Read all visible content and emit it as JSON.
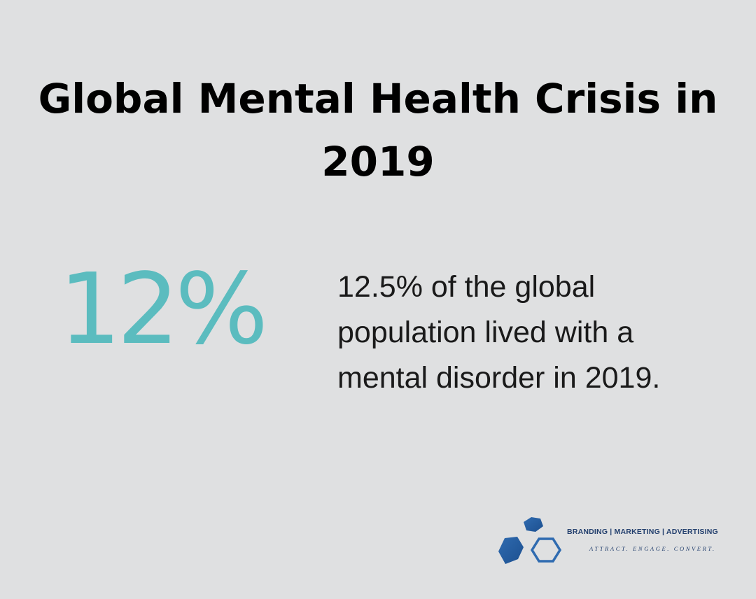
{
  "title": "Global Mental Health Crisis in 2019",
  "stat": {
    "value": "12%",
    "description": "12.5% of the global population lived with a mental disorder in 2019."
  },
  "logo": {
    "tagline": "BRANDING | MARKETING | ADVERTISING",
    "slogan": "ATTRACT. ENGAGE. CONVERT."
  },
  "colors": {
    "background": "#dfe0e1",
    "accent": "#5bbcbf",
    "brand": "#24406e"
  }
}
